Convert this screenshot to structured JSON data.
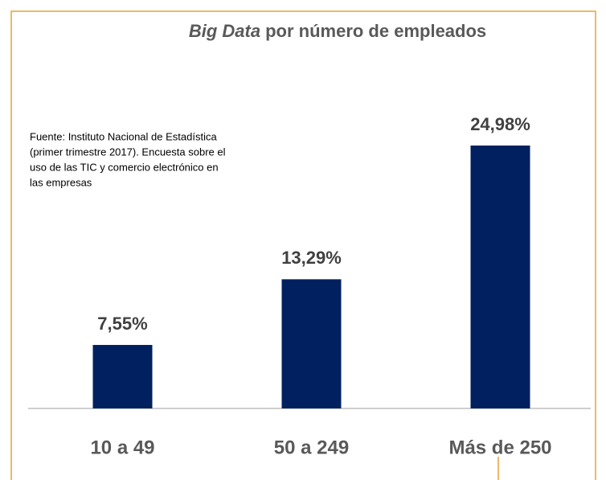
{
  "chart_data": {
    "type": "bar",
    "title": {
      "emphasis": "Big Data",
      "rest": "por número de empleados"
    },
    "source": [
      "Fuente: Instituto Nacional de Estadística",
      "(primer trimestre 2017). Encuesta sobre el",
      "uso de las TIC y comercio electrónico en",
      "las empresas"
    ],
    "categories": [
      "10 a 49",
      "50 a 249",
      "Más de 250"
    ],
    "values": [
      7.55,
      13.29,
      24.98
    ],
    "value_labels": [
      "7,55%",
      "13,29%",
      "24,98%"
    ],
    "color": "#002060",
    "ylim": [
      2,
      26
    ]
  }
}
